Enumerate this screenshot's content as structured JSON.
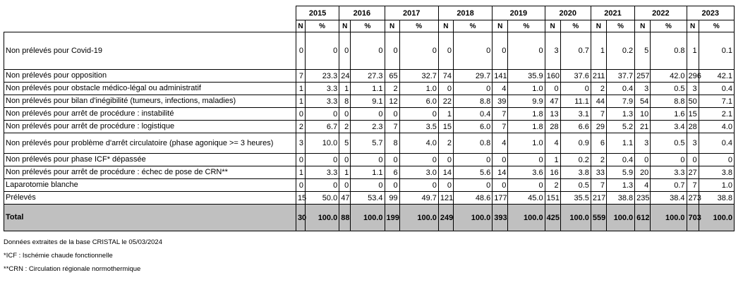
{
  "years": [
    "2015",
    "2016",
    "2017",
    "2018",
    "2019",
    "2020",
    "2021",
    "2022",
    "2023"
  ],
  "sub_n": "N",
  "sub_pct": "%",
  "rows": [
    {
      "label": "Non prélevés pour Covid-19",
      "cls": "tall",
      "vals": [
        "0",
        "0",
        "0",
        "0",
        "0",
        "0",
        "0",
        "0",
        "0",
        "0",
        "3",
        "0.7",
        "1",
        "0.2",
        "5",
        "0.8",
        "1",
        "0.1"
      ]
    },
    {
      "label": "Non prélevés pour opposition",
      "cls": "norm",
      "vals": [
        "7",
        "23.3",
        "24",
        "27.3",
        "65",
        "32.7",
        "74",
        "29.7",
        "141",
        "35.9",
        "160",
        "37.6",
        "211",
        "37.7",
        "257",
        "42.0",
        "296",
        "42.1"
      ]
    },
    {
      "label": "Non prélevés pour obstacle médico-légal ou administratif",
      "cls": "norm",
      "vals": [
        "1",
        "3.3",
        "1",
        "1.1",
        "2",
        "1.0",
        "0",
        "0",
        "4",
        "1.0",
        "0",
        "0",
        "2",
        "0.4",
        "3",
        "0.5",
        "3",
        "0.4"
      ]
    },
    {
      "label": "Non prélevés pour bilan d'inégibilité (tumeurs, infections, maladies)",
      "cls": "norm",
      "vals": [
        "1",
        "3.3",
        "8",
        "9.1",
        "12",
        "6.0",
        "22",
        "8.8",
        "39",
        "9.9",
        "47",
        "11.1",
        "44",
        "7.9",
        "54",
        "8.8",
        "50",
        "7.1"
      ]
    },
    {
      "label": "Non prélevés pour arrêt de procédure : instabilité",
      "cls": "norm",
      "vals": [
        "0",
        "0",
        "0",
        "0",
        "0",
        "0",
        "1",
        "0.4",
        "7",
        "1.8",
        "13",
        "3.1",
        "7",
        "1.3",
        "10",
        "1.6",
        "15",
        "2.1"
      ]
    },
    {
      "label": "Non prélevés pour arrêt de procédure : logistique",
      "cls": "norm",
      "vals": [
        "2",
        "6.7",
        "2",
        "2.3",
        "7",
        "3.5",
        "15",
        "6.0",
        "7",
        "1.8",
        "28",
        "6.6",
        "29",
        "5.2",
        "21",
        "3.4",
        "28",
        "4.0"
      ]
    },
    {
      "label": "Non prélevés pour problème d'arrêt circulatoire (phase agonique >= 3 heures)",
      "cls": "two",
      "vals": [
        "3",
        "10.0",
        "5",
        "5.7",
        "8",
        "4.0",
        "2",
        "0.8",
        "4",
        "1.0",
        "4",
        "0.9",
        "6",
        "1.1",
        "3",
        "0.5",
        "3",
        "0.4"
      ]
    },
    {
      "label": "Non prélevés pour phase ICF* dépassée",
      "cls": "norm",
      "vals": [
        "0",
        "0",
        "0",
        "0",
        "0",
        "0",
        "0",
        "0",
        "0",
        "0",
        "1",
        "0.2",
        "2",
        "0.4",
        "0",
        "0",
        "0",
        "0"
      ]
    },
    {
      "label": "Non prélevés pour arrêt de procédure : échec de pose de CRN**",
      "cls": "norm",
      "vals": [
        "1",
        "3.3",
        "1",
        "1.1",
        "6",
        "3.0",
        "14",
        "5.6",
        "14",
        "3.6",
        "16",
        "3.8",
        "33",
        "5.9",
        "20",
        "3.3",
        "27",
        "3.8"
      ]
    },
    {
      "label": "Laparotomie blanche",
      "cls": "norm",
      "vals": [
        "0",
        "0",
        "0",
        "0",
        "0",
        "0",
        "0",
        "0",
        "0",
        "0",
        "2",
        "0.5",
        "7",
        "1.3",
        "4",
        "0.7",
        "7",
        "1.0"
      ]
    },
    {
      "label": "Prélevés",
      "cls": "norm",
      "vals": [
        "15",
        "50.0",
        "47",
        "53.4",
        "99",
        "49.7",
        "121",
        "48.6",
        "177",
        "45.0",
        "151",
        "35.5",
        "217",
        "38.8",
        "235",
        "38.4",
        "273",
        "38.8"
      ]
    },
    {
      "label": "Total",
      "cls": "total",
      "vals": [
        "30",
        "100.0",
        "88",
        "100.0",
        "199",
        "100.0",
        "249",
        "100.0",
        "393",
        "100.0",
        "425",
        "100.0",
        "559",
        "100.0",
        "612",
        "100.0",
        "703",
        "100.0"
      ]
    }
  ],
  "notes": [
    "Données extraites de la base CRISTAL le 05/03/2024",
    "*ICF : Ischémie chaude fonctionnelle",
    "**CRN : Circulation régionale normothermique"
  ]
}
